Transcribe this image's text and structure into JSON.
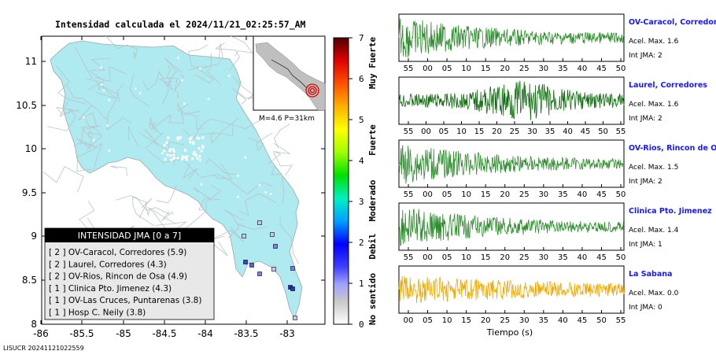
{
  "title": "Intensidad calculada el 2024/11/21_02:25:57_AM",
  "footer_id": "LISUCR 20241121022559",
  "map": {
    "y_ticks": [
      "11",
      "10.5",
      "10",
      "9.5",
      "9",
      "8.5",
      "8"
    ],
    "x_ticks": [
      "-86",
      "-85.5",
      "-85",
      "-84.5",
      "-84",
      "-83.5",
      "-83"
    ],
    "land_color": "#aeeaf0",
    "inset_label": "M=4.6 P=31km",
    "legend_title": "INTENSIDAD JMA [0 a 7]",
    "legend_items": [
      "[ 2 ]  OV-Caracol, Corredores (5.9)",
      "[ 2 ]  Laurel, Corredores (4.3)",
      "[ 2 ]  OV-Rios, Rincon de Osa (4.9)",
      "[ 1 ]  Clinica Pto. Jimenez (4.3)",
      "[ 1 ]  OV-Las Cruces, Puntarenas (3.8)",
      "[ 1 ]  Hosp C. Neily (3.8)"
    ]
  },
  "colorbar": {
    "ticks": [
      "7",
      "6",
      "5",
      "4",
      "3",
      "2",
      "1",
      "0"
    ],
    "labels": [
      "Muy Fuerte",
      "Fuerte",
      "Moderado",
      "Debil",
      "No sentido"
    ]
  },
  "waveforms": {
    "xlabel": "Tiempo (s)",
    "stations": [
      {
        "name": "OV-Caracol, Corredores",
        "acel": "Acel. Max. 1.6",
        "int": "Int JMA: 2",
        "color": "#2e8b2e",
        "ticks": [
          "55",
          "00",
          "05",
          "10",
          "15",
          "20",
          "25",
          "30",
          "35",
          "40",
          "45",
          "50"
        ]
      },
      {
        "name": "Laurel, Corredores",
        "acel": "Acel. Max. 1.6",
        "int": "Int JMA: 2",
        "color": "#0e6b0e",
        "ticks": [
          "55",
          "00",
          "05",
          "10",
          "15",
          "20",
          "25",
          "30",
          "35",
          "40",
          "45",
          "50",
          "55"
        ]
      },
      {
        "name": "OV-Rios, Rincon de Osa",
        "acel": "Acel. Max. 1.5",
        "int": "Int JMA: 2",
        "color": "#2e8b2e",
        "ticks": [
          "55",
          "00",
          "05",
          "10",
          "15",
          "20",
          "25",
          "30",
          "35",
          "40",
          "45",
          "50"
        ]
      },
      {
        "name": "Clinica Pto. Jimenez",
        "acel": "Acel. Max. 1.4",
        "int": "Int JMA: 1",
        "color": "#2e8b2e",
        "ticks": [
          "55",
          "00",
          "05",
          "10",
          "15",
          "20",
          "25",
          "30",
          "35",
          "40",
          "45",
          "50"
        ]
      },
      {
        "name": "La Sabana",
        "acel": "Acel. Max. 0.0",
        "int": "Int JMA: 0",
        "color": "#f0a800",
        "ticks": [
          "00",
          "05",
          "10",
          "15",
          "20",
          "25",
          "30",
          "35",
          "40",
          "45",
          "50",
          "55"
        ]
      }
    ]
  }
}
